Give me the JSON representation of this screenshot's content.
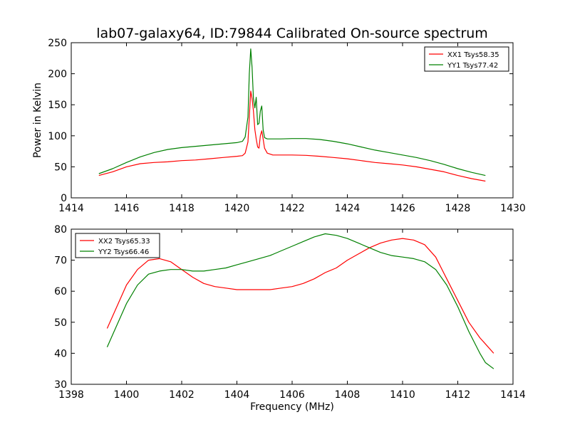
{
  "chart_data": [
    {
      "type": "line",
      "title": "lab07-galaxy64, ID:79844 Calibrated On-source spectrum",
      "xlabel": "",
      "ylabel": "Power in Kelvin",
      "xlim": [
        1414,
        1430
      ],
      "ylim": [
        0,
        250
      ],
      "xticks": [
        "1414",
        "1416",
        "1418",
        "1420",
        "1422",
        "1424",
        "1426",
        "1428",
        "1430"
      ],
      "yticks": [
        "0",
        "50",
        "100",
        "150",
        "200",
        "250"
      ],
      "grid": false,
      "legend_position": "top-right",
      "series": [
        {
          "name": "XX1 Tsys58.35",
          "color": "#ff0000",
          "x": [
            1415.0,
            1415.5,
            1416.0,
            1416.5,
            1417.0,
            1417.5,
            1418.0,
            1418.5,
            1419.0,
            1419.5,
            1420.0,
            1420.2,
            1420.3,
            1420.4,
            1420.45,
            1420.5,
            1420.55,
            1420.6,
            1420.65,
            1420.7,
            1420.75,
            1420.8,
            1420.85,
            1420.9,
            1420.95,
            1421.0,
            1421.1,
            1421.3,
            1421.6,
            1422.0,
            1422.5,
            1423.0,
            1423.5,
            1424.0,
            1424.5,
            1425.0,
            1425.5,
            1426.0,
            1426.5,
            1427.0,
            1427.5,
            1428.0,
            1428.5,
            1429.0
          ],
          "values": [
            36,
            42,
            50,
            55,
            57,
            58,
            60,
            61,
            63,
            65,
            67,
            68,
            72,
            90,
            130,
            172,
            160,
            140,
            110,
            95,
            82,
            80,
            100,
            108,
            95,
            80,
            72,
            69,
            69,
            69,
            68.5,
            67,
            65,
            63,
            60,
            57,
            55,
            53,
            50,
            46,
            42,
            36,
            31,
            27
          ]
        },
        {
          "name": "YY1 Tsys77.42",
          "color": "#008000",
          "x": [
            1415.0,
            1415.5,
            1416.0,
            1416.5,
            1417.0,
            1417.5,
            1418.0,
            1418.5,
            1419.0,
            1419.5,
            1420.0,
            1420.2,
            1420.3,
            1420.4,
            1420.45,
            1420.5,
            1420.55,
            1420.6,
            1420.65,
            1420.7,
            1420.75,
            1420.8,
            1420.85,
            1420.9,
            1420.95,
            1421.0,
            1421.1,
            1421.3,
            1421.6,
            1422.0,
            1422.5,
            1423.0,
            1423.5,
            1424.0,
            1424.5,
            1425.0,
            1425.5,
            1426.0,
            1426.5,
            1427.0,
            1427.5,
            1428.0,
            1428.5,
            1429.0
          ],
          "values": [
            39,
            47,
            57,
            66,
            73,
            78,
            81,
            83,
            85,
            87,
            89,
            91,
            98,
            130,
            200,
            240,
            210,
            160,
            145,
            162,
            118,
            120,
            140,
            148,
            110,
            97,
            95,
            95,
            95,
            95.5,
            95.5,
            94,
            91,
            87,
            82,
            77,
            73,
            69,
            65,
            60,
            54,
            47,
            41,
            36
          ]
        }
      ]
    },
    {
      "type": "line",
      "title": "",
      "xlabel": "Frequency (MHz)",
      "ylabel": "",
      "xlim": [
        1398,
        1414
      ],
      "ylim": [
        30,
        80
      ],
      "xticks": [
        "1398",
        "1400",
        "1402",
        "1404",
        "1406",
        "1408",
        "1410",
        "1412",
        "1414"
      ],
      "yticks": [
        "30",
        "40",
        "50",
        "60",
        "70",
        "80"
      ],
      "grid": false,
      "legend_position": "top-left",
      "series": [
        {
          "name": "XX2 Tsys65.33",
          "color": "#ff0000",
          "x": [
            1399.3,
            1399.6,
            1400.0,
            1400.4,
            1400.8,
            1401.2,
            1401.6,
            1402.0,
            1402.4,
            1402.8,
            1403.2,
            1403.6,
            1404.0,
            1404.4,
            1404.8,
            1405.2,
            1405.6,
            1406.0,
            1406.4,
            1406.8,
            1407.2,
            1407.6,
            1408.0,
            1408.4,
            1408.8,
            1409.2,
            1409.6,
            1410.0,
            1410.4,
            1410.8,
            1411.2,
            1411.6,
            1412.0,
            1412.4,
            1412.8,
            1413.0,
            1413.3
          ],
          "values": [
            48,
            54,
            62,
            67,
            70,
            70.5,
            69.5,
            67,
            64.5,
            62.5,
            61.5,
            61,
            60.5,
            60.5,
            60.5,
            60.5,
            61,
            61.5,
            62.5,
            64,
            66,
            67.5,
            70,
            72,
            74,
            75.5,
            76.5,
            77,
            76.5,
            75,
            71,
            64,
            57,
            50,
            45,
            43,
            40
          ]
        },
        {
          "name": "YY2 Tsys66.46",
          "color": "#008000",
          "x": [
            1399.3,
            1399.6,
            1400.0,
            1400.4,
            1400.8,
            1401.2,
            1401.6,
            1402.0,
            1402.4,
            1402.8,
            1403.2,
            1403.6,
            1404.0,
            1404.4,
            1404.8,
            1405.2,
            1405.6,
            1406.0,
            1406.4,
            1406.8,
            1407.2,
            1407.6,
            1408.0,
            1408.4,
            1408.8,
            1409.2,
            1409.6,
            1410.0,
            1410.4,
            1410.8,
            1411.2,
            1411.6,
            1412.0,
            1412.4,
            1412.8,
            1413.0,
            1413.3
          ],
          "values": [
            42,
            48,
            56,
            62,
            65.5,
            66.5,
            67,
            67,
            66.5,
            66.5,
            67,
            67.5,
            68.5,
            69.5,
            70.5,
            71.5,
            73,
            74.5,
            76,
            77.5,
            78.5,
            78,
            77,
            75.5,
            74,
            72.5,
            71.5,
            71,
            70.5,
            69.5,
            67,
            62,
            55,
            47,
            40,
            37,
            35
          ]
        }
      ]
    }
  ]
}
